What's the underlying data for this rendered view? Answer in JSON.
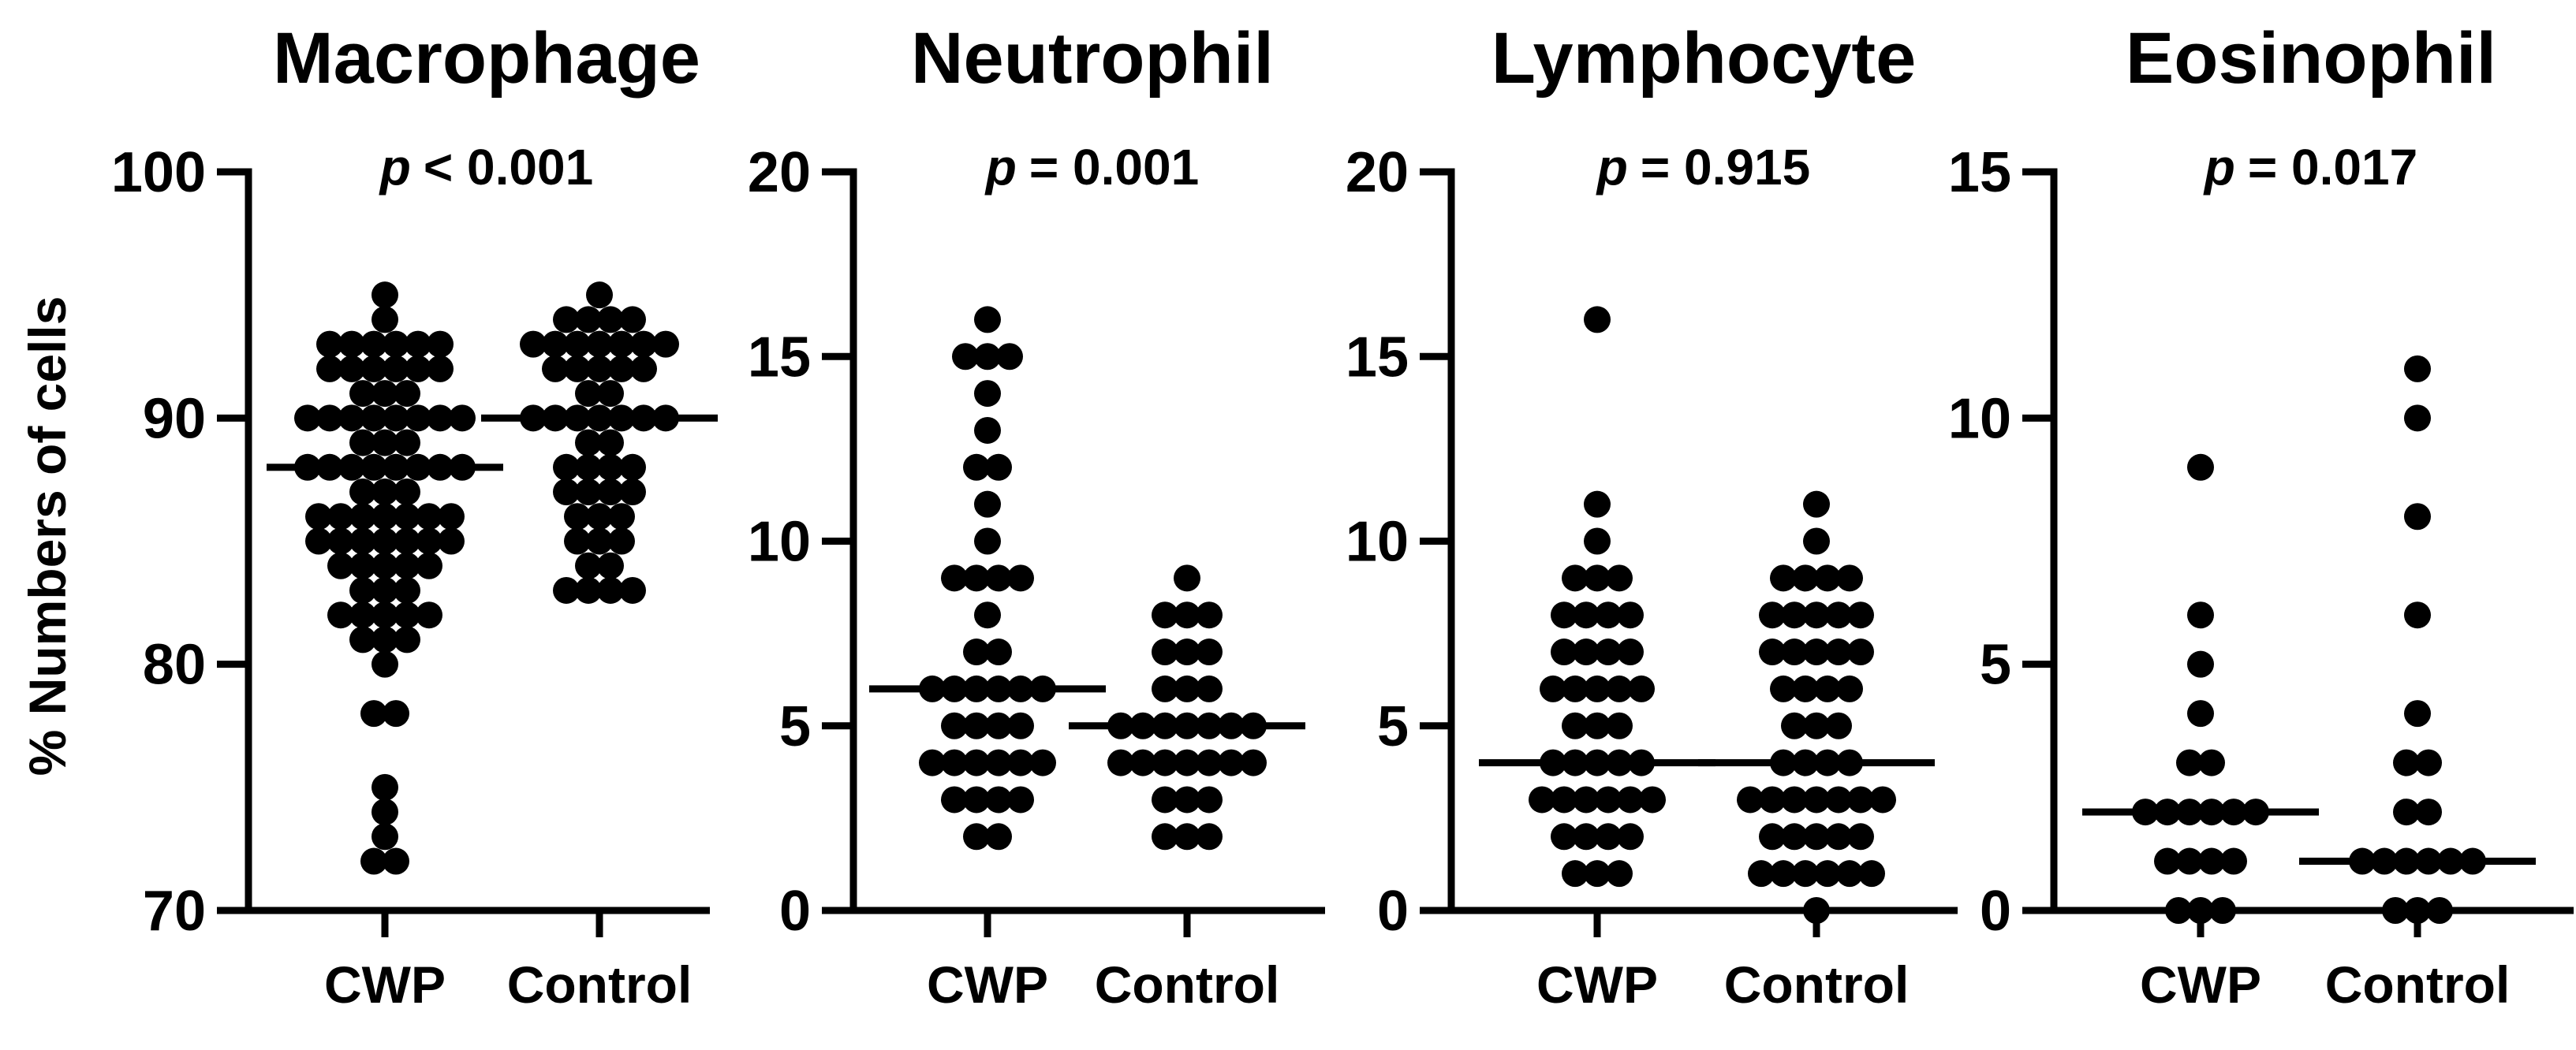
{
  "figure": {
    "ylabel": "% Numbers of cells",
    "groups": [
      "CWP",
      "Control"
    ],
    "ink_color": "#000000",
    "background_color": "#ffffff"
  },
  "chart_data": [
    {
      "type": "scatter",
      "subtype": "stacked-dotplot",
      "title": "Macrophage",
      "p_prefix": "p",
      "p_rest": "< 0.001",
      "ylim": [
        70,
        100
      ],
      "yticks": [
        70,
        80,
        90,
        100
      ],
      "grid": false,
      "legend": "none",
      "categories": [
        "CWP",
        "Control"
      ],
      "series": [
        {
          "name": "CWP",
          "median": 88,
          "counts": {
            "72": 2,
            "73": 1,
            "74": 1,
            "75": 1,
            "78": 2,
            "80": 1,
            "81": 3,
            "82": 5,
            "83": 3,
            "84": 5,
            "85": 7,
            "86": 7,
            "87": 3,
            "88": 8,
            "89": 3,
            "90": 8,
            "91": 3,
            "92": 6,
            "93": 6,
            "94": 1,
            "95": 1
          }
        },
        {
          "name": "Control",
          "median": 90,
          "counts": {
            "83": 4,
            "84": 2,
            "85": 3,
            "86": 3,
            "87": 4,
            "88": 4,
            "89": 2,
            "90": 7,
            "91": 2,
            "92": 5,
            "93": 7,
            "94": 4,
            "95": 1
          }
        }
      ]
    },
    {
      "type": "scatter",
      "subtype": "stacked-dotplot",
      "title": "Neutrophil",
      "p_prefix": "p",
      "p_rest": "= 0.001",
      "ylim": [
        0,
        20
      ],
      "yticks": [
        0,
        5,
        10,
        15,
        20
      ],
      "grid": false,
      "legend": "none",
      "categories": [
        "CWP",
        "Control"
      ],
      "series": [
        {
          "name": "CWP",
          "median": 6,
          "counts": {
            "2": 2,
            "3": 4,
            "4": 6,
            "5": 4,
            "6": 6,
            "7": 2,
            "8": 1,
            "9": 4,
            "10": 1,
            "11": 1,
            "12": 2,
            "13": 1,
            "14": 1,
            "15": 3,
            "16": 1
          }
        },
        {
          "name": "Control",
          "median": 5,
          "counts": {
            "2": 3,
            "3": 3,
            "4": 7,
            "5": 7,
            "6": 3,
            "7": 3,
            "8": 3,
            "9": 1
          }
        }
      ]
    },
    {
      "type": "scatter",
      "subtype": "stacked-dotplot",
      "title": "Lymphocyte",
      "p_prefix": "p",
      "p_rest": "= 0.915",
      "ylim": [
        0,
        20
      ],
      "yticks": [
        0,
        5,
        10,
        15,
        20
      ],
      "grid": false,
      "legend": "none",
      "categories": [
        "CWP",
        "Control"
      ],
      "series": [
        {
          "name": "CWP",
          "median": 4,
          "counts": {
            "1": 3,
            "2": 4,
            "3": 6,
            "4": 5,
            "5": 3,
            "6": 5,
            "7": 4,
            "8": 4,
            "9": 3,
            "10": 1,
            "11": 1,
            "16": 1
          }
        },
        {
          "name": "Control",
          "median": 4,
          "counts": {
            "0": 1,
            "1": 6,
            "2": 5,
            "3": 7,
            "4": 4,
            "5": 3,
            "6": 4,
            "7": 5,
            "8": 5,
            "9": 4,
            "10": 1,
            "11": 1
          }
        }
      ]
    },
    {
      "type": "scatter",
      "subtype": "stacked-dotplot",
      "title": "Eosinophil",
      "p_prefix": "p",
      "p_rest": "= 0.017",
      "ylim": [
        0,
        15
      ],
      "yticks": [
        0,
        5,
        10,
        15
      ],
      "grid": false,
      "legend": "none",
      "categories": [
        "CWP",
        "Control"
      ],
      "series": [
        {
          "name": "CWP",
          "median": 2,
          "counts": {
            "0": 3,
            "1": 4,
            "2": 6,
            "3": 2,
            "4": 1,
            "5": 1,
            "6": 1,
            "9": 1
          }
        },
        {
          "name": "Control",
          "median": 1,
          "counts": {
            "0": 3,
            "1": 6,
            "2": 2,
            "3": 2,
            "4": 1,
            "6": 1,
            "8": 1,
            "10": 1,
            "11": 1
          }
        }
      ]
    }
  ]
}
